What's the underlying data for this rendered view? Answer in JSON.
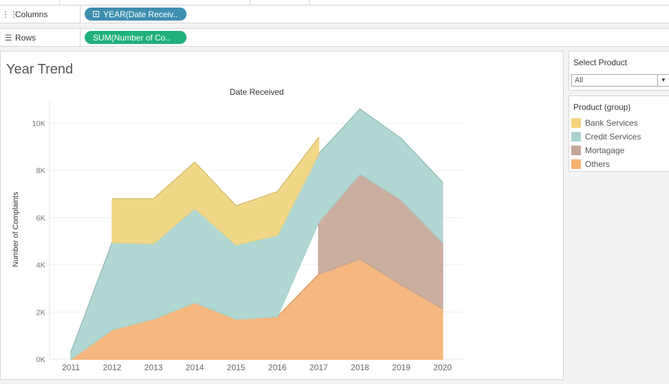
{
  "shelves": {
    "columns": {
      "label": "Columns",
      "pill": "YEAR(Date Receiv..",
      "pill_icon": "plus-box-icon"
    },
    "rows": {
      "label": "Rows",
      "pill": "SUM(Number of Co.."
    }
  },
  "sheet": {
    "title": "Year Trend"
  },
  "filter": {
    "title": "Select Product",
    "value": "All"
  },
  "legend": {
    "title": "Product (group)",
    "items": [
      {
        "label": "Bank Services",
        "color": "#f0d47c"
      },
      {
        "label": "Credit Services",
        "color": "#a9d3ce"
      },
      {
        "label": "Mortagage",
        "color": "#c4a596"
      },
      {
        "label": "Others",
        "color": "#f5b072"
      }
    ]
  },
  "chart_data": {
    "type": "area",
    "title": "Date Received",
    "xlabel": "Date Received",
    "ylabel": "Number of Complaints",
    "categories": [
      "2011",
      "2012",
      "2013",
      "2014",
      "2015",
      "2016",
      "2017",
      "2018",
      "2019",
      "2020"
    ],
    "ylim": [
      0,
      11000
    ],
    "yticks": [
      0,
      2000,
      4000,
      6000,
      8000,
      10000
    ],
    "ytick_labels": [
      "0K",
      "2K",
      "4K",
      "6K",
      "8K",
      "10K"
    ],
    "stacked": true,
    "series": [
      {
        "name": "Others",
        "color": "#f5b072",
        "values": [
          0,
          1250,
          1700,
          2400,
          1700,
          1800,
          3600,
          4250,
          3150,
          2150
        ]
      },
      {
        "name": "Mortagage",
        "color": "#c4a596",
        "values": [
          null,
          null,
          null,
          null,
          null,
          null,
          2200,
          3600,
          3600,
          2800
        ]
      },
      {
        "name": "Credit Services",
        "color": "#a9d3ce",
        "values": [
          300,
          3700,
          3200,
          4000,
          3150,
          3450,
          2900,
          2750,
          2600,
          2550
        ]
      },
      {
        "name": "Bank Services",
        "color": "#f0d47c",
        "values": [
          null,
          1850,
          1900,
          1950,
          1650,
          1850,
          700,
          null,
          null,
          null
        ]
      }
    ]
  }
}
